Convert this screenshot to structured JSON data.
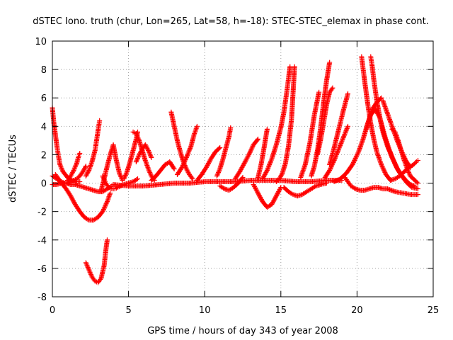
{
  "chart_data": {
    "type": "scatter",
    "title": "dSTEC Iono. truth (chur, Lon=265, Lat=58, h=-18): STEC-STEC_elemax in phase cont.",
    "xlabel": "GPS time / hours of day 343 of year 2008",
    "ylabel": "dSTEC  / TECUs",
    "xlim": [
      0,
      25
    ],
    "ylim": [
      -8,
      10
    ],
    "xticks": [
      "0",
      "5",
      "10",
      "15",
      "20",
      "25"
    ],
    "yticks": [
      "-8",
      "-6",
      "-4",
      "-2",
      "0",
      "2",
      "4",
      "6",
      "8",
      "10"
    ],
    "grid": true,
    "marker": "+",
    "color": "#ff0000",
    "series": [
      {
        "x": [
          0.0,
          0.1,
          0.2,
          0.3,
          0.4,
          0.5,
          0.7,
          1.0,
          1.3,
          1.6,
          1.8
        ],
        "y": [
          5.3,
          4.2,
          3.4,
          2.6,
          1.9,
          1.3,
          0.8,
          0.4,
          0.2,
          0.1,
          0.1
        ]
      },
      {
        "x": [
          0.0,
          0.3,
          0.6,
          0.9,
          1.2,
          1.5,
          1.8,
          2.1,
          2.4,
          2.7,
          3.0,
          3.3,
          3.6,
          3.8
        ],
        "y": [
          0.5,
          0.3,
          0.0,
          -0.4,
          -0.9,
          -1.5,
          -2.0,
          -2.4,
          -2.6,
          -2.6,
          -2.4,
          -2.0,
          -1.3,
          -0.7
        ]
      },
      {
        "x": [
          0.0,
          0.3,
          0.6,
          0.9,
          1.2,
          1.5,
          1.8,
          2.1,
          2.4,
          2.7,
          3.0,
          3.3,
          3.6,
          3.9
        ],
        "y": [
          -0.1,
          -0.1,
          0.0,
          0.0,
          -0.1,
          -0.1,
          -0.2,
          -0.3,
          -0.4,
          -0.5,
          -0.6,
          -0.6,
          -0.4,
          -0.2
        ]
      },
      {
        "x": [
          1.0,
          1.2,
          1.4,
          1.6,
          1.7,
          1.8
        ],
        "y": [
          0.2,
          0.5,
          0.9,
          1.4,
          1.8,
          2.1
        ]
      },
      {
        "x": [
          0.2,
          0.4,
          0.6,
          0.8,
          1.0,
          1.2,
          1.4,
          1.6,
          1.8,
          2.0,
          2.2
        ],
        "y": [
          0.6,
          0.3,
          0.1,
          0.0,
          0.0,
          0.1,
          0.2,
          0.3,
          0.5,
          0.8,
          1.2
        ]
      },
      {
        "x": [
          2.2,
          2.4,
          2.6,
          2.8,
          2.9,
          3.0,
          3.1
        ],
        "y": [
          0.5,
          0.9,
          1.5,
          2.3,
          3.0,
          3.7,
          4.4
        ]
      },
      {
        "x": [
          2.2,
          2.4,
          2.6,
          2.8,
          3.0,
          3.2,
          3.4,
          3.5,
          3.6
        ],
        "y": [
          -5.6,
          -6.1,
          -6.6,
          -6.9,
          -7.0,
          -6.7,
          -5.8,
          -4.8,
          -4.0
        ]
      },
      {
        "x": [
          3.2,
          3.4,
          3.6,
          3.8,
          4.0,
          4.2,
          4.4,
          4.6
        ],
        "y": [
          -0.5,
          0.3,
          1.2,
          2.0,
          2.7,
          1.6,
          0.7,
          0.2
        ]
      },
      {
        "x": [
          3.3,
          3.5,
          3.7,
          3.9,
          4.1,
          4.3,
          4.5,
          4.7,
          5.0,
          5.3,
          5.6
        ],
        "y": [
          0.5,
          0.0,
          -0.3,
          -0.4,
          -0.4,
          -0.3,
          -0.2,
          -0.1,
          0.0,
          0.1,
          0.3
        ]
      },
      {
        "x": [
          4.7,
          4.9,
          5.1,
          5.3,
          5.5,
          5.6
        ],
        "y": [
          0.3,
          0.8,
          1.5,
          2.3,
          3.1,
          3.6
        ]
      },
      {
        "x": [
          5.3,
          5.5,
          5.7,
          5.9,
          6.1,
          6.3,
          6.5,
          6.7
        ],
        "y": [
          3.6,
          3.5,
          3.0,
          2.3,
          1.6,
          1.0,
          0.5,
          0.2
        ]
      },
      {
        "x": [
          5.5,
          5.7,
          5.9,
          6.1,
          6.3,
          6.5
        ],
        "y": [
          1.5,
          2.0,
          2.4,
          2.7,
          2.3,
          1.8
        ]
      },
      {
        "x": [
          4.0,
          5.0,
          6.0,
          7.0,
          8.0,
          9.0,
          10.0,
          11.0,
          12.0,
          13.0,
          14.0,
          15.0,
          16.0,
          17.0,
          18.0,
          19.0
        ],
        "y": [
          -0.1,
          -0.2,
          -0.2,
          -0.1,
          0.0,
          0.0,
          0.1,
          0.1,
          0.1,
          0.2,
          0.2,
          0.2,
          0.1,
          0.1,
          0.2,
          0.2
        ]
      },
      {
        "x": [
          7.8,
          8.0,
          8.2,
          8.4,
          8.6,
          8.8,
          9.0,
          9.2
        ],
        "y": [
          5.0,
          4.0,
          3.0,
          2.2,
          1.5,
          1.0,
          0.6,
          0.3
        ]
      },
      {
        "x": [
          8.2,
          8.5,
          8.8,
          9.1,
          9.3,
          9.5
        ],
        "y": [
          0.6,
          1.1,
          1.8,
          2.6,
          3.4,
          4.0
        ]
      },
      {
        "x": [
          6.5,
          6.8,
          7.1,
          7.4,
          7.7,
          8.0
        ],
        "y": [
          0.2,
          0.5,
          0.9,
          1.3,
          1.5,
          1.0
        ]
      },
      {
        "x": [
          9.5,
          9.8,
          10.1,
          10.4,
          10.7,
          11.0
        ],
        "y": [
          0.2,
          0.6,
          1.1,
          1.7,
          2.2,
          2.5
        ]
      },
      {
        "x": [
          10.8,
          11.0,
          11.2,
          11.4,
          11.6,
          11.7
        ],
        "y": [
          0.5,
          1.0,
          1.7,
          2.5,
          3.3,
          3.9
        ]
      },
      {
        "x": [
          11.0,
          11.3,
          11.6,
          11.9,
          12.2,
          12.5
        ],
        "y": [
          -0.2,
          -0.4,
          -0.5,
          -0.3,
          0.0,
          0.4
        ]
      },
      {
        "x": [
          12.0,
          12.3,
          12.6,
          12.9,
          13.2,
          13.5
        ],
        "y": [
          0.3,
          0.8,
          1.4,
          2.0,
          2.7,
          3.1
        ]
      },
      {
        "x": [
          13.2,
          13.5,
          13.8,
          14.1,
          14.4,
          14.7,
          15.0
        ],
        "y": [
          -0.1,
          -0.7,
          -1.3,
          -1.7,
          -1.5,
          -0.9,
          -0.3
        ]
      },
      {
        "x": [
          13.5,
          13.7,
          13.9,
          14.1
        ],
        "y": [
          0.4,
          1.3,
          2.5,
          3.8
        ]
      },
      {
        "x": [
          13.8,
          14.1,
          14.4,
          14.7,
          15.0,
          15.2,
          15.4,
          15.6
        ],
        "y": [
          0.3,
          0.9,
          1.7,
          2.7,
          3.9,
          5.0,
          6.5,
          8.2
        ]
      },
      {
        "x": [
          14.7,
          14.9,
          15.1,
          15.3,
          15.5,
          15.7,
          15.9
        ],
        "y": [
          0.1,
          0.3,
          0.7,
          1.4,
          2.6,
          4.5,
          8.2
        ]
      },
      {
        "x": [
          15.2,
          15.5,
          15.8,
          16.1,
          16.4,
          16.7,
          17.0,
          17.3,
          17.6,
          18.0
        ],
        "y": [
          -0.3,
          -0.6,
          -0.8,
          -0.9,
          -0.8,
          -0.6,
          -0.4,
          -0.2,
          -0.1,
          0.0
        ]
      },
      {
        "x": [
          16.3,
          16.6,
          16.9,
          17.2,
          17.5
        ],
        "y": [
          0.4,
          1.3,
          2.8,
          4.8,
          6.4
        ]
      },
      {
        "x": [
          17.0,
          17.2,
          17.4,
          17.6,
          17.8,
          18.0,
          18.2
        ],
        "y": [
          0.5,
          1.2,
          2.3,
          3.8,
          5.6,
          7.2,
          8.5
        ]
      },
      {
        "x": [
          17.4,
          17.6,
          17.8,
          18.0,
          18.2,
          18.4
        ],
        "y": [
          2.0,
          3.0,
          4.2,
          5.5,
          6.4,
          6.7
        ]
      },
      {
        "x": [
          17.9,
          18.2,
          18.5,
          18.8,
          19.1,
          19.4
        ],
        "y": [
          0.4,
          0.9,
          1.6,
          2.4,
          3.2,
          4.0
        ]
      },
      {
        "x": [
          18.2,
          18.5,
          18.8,
          19.1,
          19.4
        ],
        "y": [
          1.3,
          2.5,
          3.8,
          5.1,
          6.3
        ]
      },
      {
        "x": [
          19.2,
          19.4,
          19.6,
          19.9,
          20.2,
          20.5,
          20.8,
          21.1,
          21.4,
          21.7,
          22.0,
          22.5,
          23.0,
          23.5,
          24.0
        ],
        "y": [
          0.4,
          0.1,
          -0.2,
          -0.4,
          -0.5,
          -0.5,
          -0.4,
          -0.3,
          -0.3,
          -0.4,
          -0.4,
          -0.6,
          -0.7,
          -0.8,
          -0.8
        ]
      },
      {
        "x": [
          18.5,
          18.9,
          19.3,
          19.7,
          20.1,
          20.4,
          20.7,
          21.0,
          21.3,
          21.6
        ],
        "y": [
          0.1,
          0.3,
          0.7,
          1.3,
          2.2,
          3.1,
          4.2,
          5.2,
          5.7,
          6.0
        ]
      },
      {
        "x": [
          20.3,
          20.5,
          20.7,
          20.9,
          21.1,
          21.3,
          21.6,
          21.9,
          22.2
        ],
        "y": [
          8.9,
          7.2,
          5.6,
          4.2,
          3.1,
          2.2,
          1.3,
          0.6,
          0.2
        ]
      },
      {
        "x": [
          20.9,
          21.0,
          21.1,
          21.3,
          21.5,
          21.7,
          22.0,
          22.3,
          22.6,
          22.9,
          23.2,
          23.5,
          23.8
        ],
        "y": [
          8.9,
          8.2,
          7.3,
          5.8,
          4.6,
          3.6,
          2.6,
          1.8,
          1.1,
          0.6,
          0.2,
          -0.1,
          -0.2
        ]
      },
      {
        "x": [
          20.6,
          20.9,
          21.2,
          21.5,
          21.8,
          22.1,
          22.4,
          22.7,
          23.0,
          23.3,
          23.6,
          24.0
        ],
        "y": [
          3.8,
          4.8,
          5.2,
          4.6,
          3.4,
          2.4,
          1.6,
          0.9,
          0.4,
          0.0,
          -0.3,
          -0.4
        ]
      },
      {
        "x": [
          22.3,
          22.5,
          22.7,
          22.9,
          23.1,
          23.3,
          23.5,
          23.8,
          24.0
        ],
        "y": [
          3.8,
          3.6,
          3.0,
          2.3,
          1.6,
          1.0,
          0.5,
          0.2,
          0.0
        ]
      },
      {
        "x": [
          22.2,
          22.5,
          22.8,
          23.1,
          23.4,
          23.7,
          23.9,
          24.0
        ],
        "y": [
          0.2,
          0.3,
          0.5,
          0.8,
          1.1,
          1.3,
          1.5,
          1.6
        ]
      },
      {
        "x": [
          21.7,
          22.0,
          22.3,
          22.6,
          22.9,
          23.2,
          23.5
        ],
        "y": [
          5.8,
          4.9,
          4.0,
          3.1,
          2.3,
          1.6,
          1.1
        ]
      }
    ]
  }
}
